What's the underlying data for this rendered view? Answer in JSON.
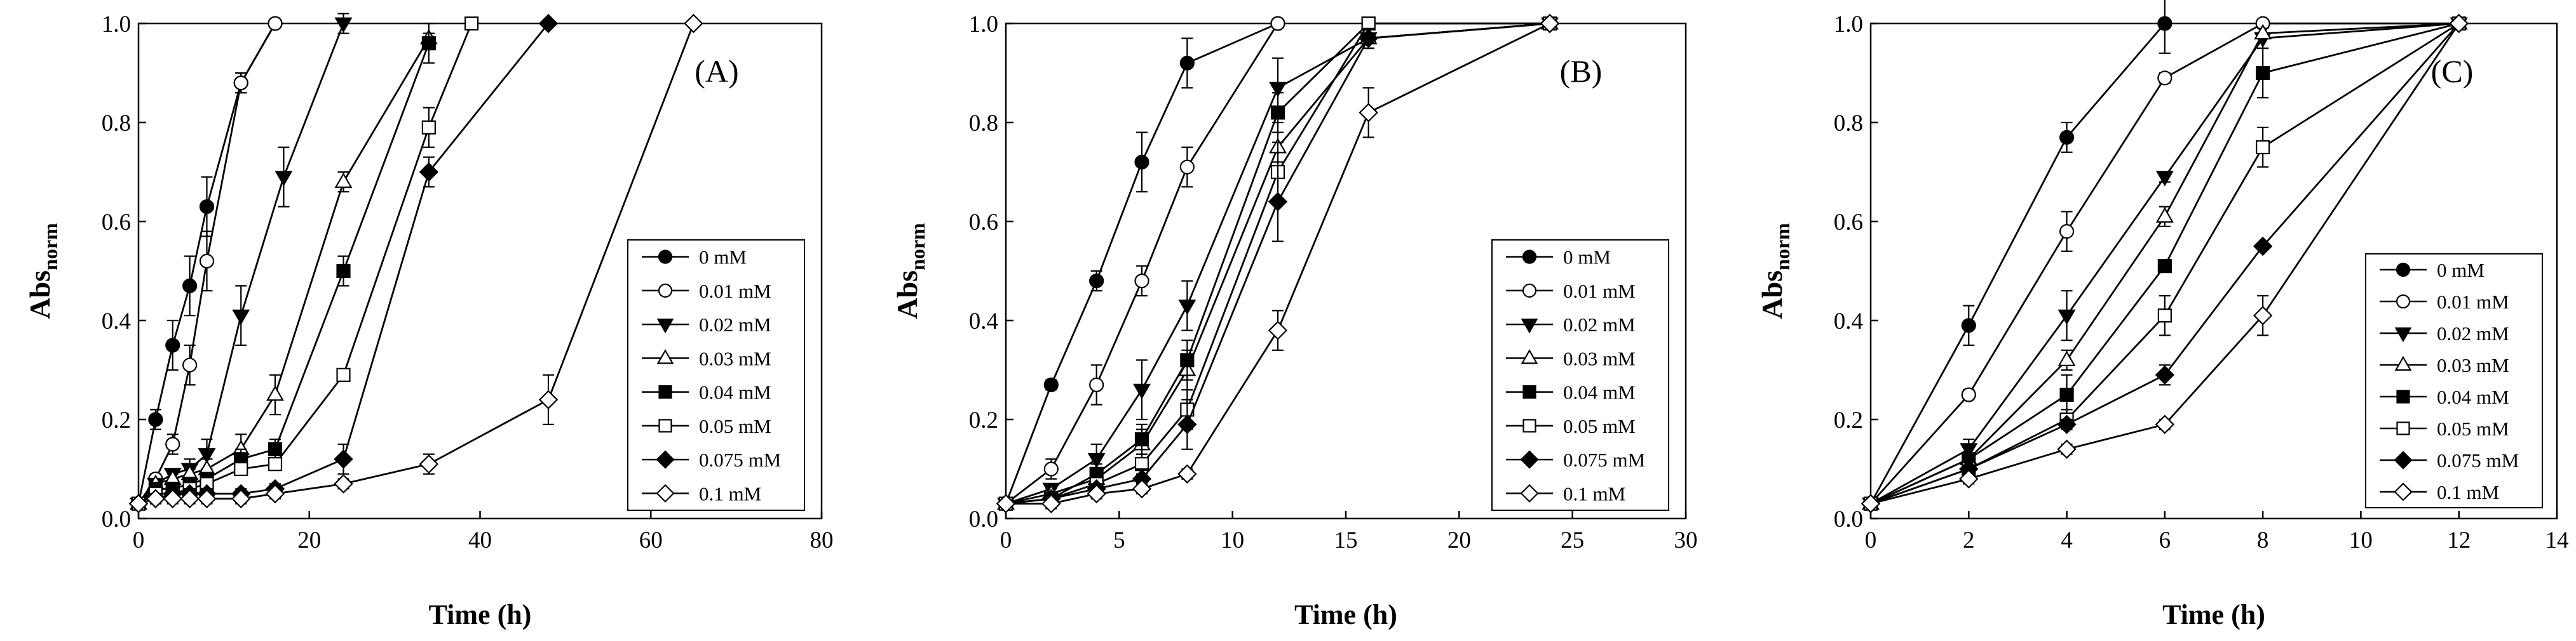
{
  "colors": {
    "ink": "#000000",
    "background": "#ffffff"
  },
  "marker_styles": [
    "filled-circle",
    "open-circle",
    "filled-triangle-down",
    "open-triangle-up",
    "filled-square",
    "open-square",
    "filled-diamond",
    "open-diamond"
  ],
  "chart_data": [
    {
      "type": "line",
      "panel_label": "(A)",
      "xlabel": "Time (h)",
      "ylabel": "Abs",
      "ylabel_sub": "norm",
      "xlim": [
        0,
        80
      ],
      "ylim": [
        0,
        1.0
      ],
      "xticks": [
        0,
        20,
        40,
        60,
        80
      ],
      "yticks": [
        0.0,
        0.2,
        0.4,
        0.6,
        0.8,
        1.0
      ],
      "xtick_labels": [
        "0",
        "20",
        "40",
        "60",
        "80"
      ],
      "ytick_labels": [
        "0.0",
        "0.2",
        "0.4",
        "0.6",
        "0.8",
        "1.0"
      ],
      "legend_position": "center-right",
      "series": [
        {
          "name": "0 mM",
          "x": [
            0,
            2,
            4,
            6,
            8,
            12,
            16
          ],
          "y": [
            0.03,
            0.2,
            0.35,
            0.47,
            0.63,
            0.88,
            1.0
          ],
          "err": [
            0,
            0.02,
            0.05,
            0.06,
            0.06,
            0.02,
            0
          ]
        },
        {
          "name": "0.01 mM",
          "x": [
            0,
            2,
            4,
            6,
            8,
            12,
            16
          ],
          "y": [
            0.03,
            0.08,
            0.15,
            0.31,
            0.52,
            0.88,
            1.0
          ],
          "err": [
            0,
            0.01,
            0.02,
            0.04,
            0.06,
            0.02,
            0
          ]
        },
        {
          "name": "0.02 mM",
          "x": [
            0,
            2,
            4,
            6,
            8,
            12,
            17,
            24
          ],
          "y": [
            0.03,
            0.07,
            0.09,
            0.1,
            0.13,
            0.41,
            0.69,
            1.0
          ],
          "err": [
            0,
            0.01,
            0.01,
            0.02,
            0.03,
            0.06,
            0.06,
            0.02
          ]
        },
        {
          "name": "0.03 mM",
          "x": [
            0,
            2,
            4,
            6,
            8,
            12,
            16,
            24,
            34
          ],
          "y": [
            0.03,
            0.07,
            0.08,
            0.09,
            0.1,
            0.14,
            0.25,
            0.68,
            0.97
          ],
          "err": [
            0,
            0.01,
            0.01,
            0.01,
            0.02,
            0.03,
            0.04,
            0.02,
            0.01
          ]
        },
        {
          "name": "0.04 mM",
          "x": [
            0,
            2,
            4,
            6,
            8,
            12,
            16,
            24,
            34
          ],
          "y": [
            0.03,
            0.06,
            0.06,
            0.07,
            0.08,
            0.12,
            0.14,
            0.5,
            0.96
          ],
          "err": [
            0,
            0.01,
            0.01,
            0.01,
            0.01,
            0.02,
            0.02,
            0.03,
            0.04
          ]
        },
        {
          "name": "0.05 mM",
          "x": [
            0,
            2,
            4,
            6,
            8,
            12,
            16,
            24,
            34,
            39
          ],
          "y": [
            0.03,
            0.05,
            0.05,
            0.06,
            0.07,
            0.1,
            0.11,
            0.29,
            0.79,
            1.0
          ],
          "err": [
            0,
            0.01,
            0.01,
            0.01,
            0.01,
            0.01,
            0.01,
            0.01,
            0.04,
            0
          ]
        },
        {
          "name": "0.075 mM",
          "x": [
            0,
            2,
            4,
            6,
            8,
            12,
            16,
            24,
            34,
            48
          ],
          "y": [
            0.03,
            0.04,
            0.05,
            0.05,
            0.05,
            0.05,
            0.06,
            0.12,
            0.7,
            1.0
          ],
          "err": [
            0,
            0.01,
            0.01,
            0.01,
            0.01,
            0.01,
            0.01,
            0.03,
            0.03,
            0
          ]
        },
        {
          "name": "0.1 mM",
          "x": [
            0,
            2,
            4,
            6,
            8,
            12,
            16,
            24,
            34,
            48,
            65
          ],
          "y": [
            0.03,
            0.04,
            0.04,
            0.04,
            0.04,
            0.04,
            0.05,
            0.07,
            0.11,
            0.24,
            1.0
          ],
          "err": [
            0,
            0.01,
            0.01,
            0.01,
            0.01,
            0.01,
            0.01,
            0.01,
            0.02,
            0.05,
            0
          ]
        }
      ]
    },
    {
      "type": "line",
      "panel_label": "(B)",
      "xlabel": "Time (h)",
      "ylabel": "Abs",
      "ylabel_sub": "norm",
      "xlim": [
        0,
        30
      ],
      "ylim": [
        0,
        1.0
      ],
      "xticks": [
        0,
        5,
        10,
        15,
        20,
        25,
        30
      ],
      "yticks": [
        0.0,
        0.2,
        0.4,
        0.6,
        0.8,
        1.0
      ],
      "xtick_labels": [
        "0",
        "5",
        "10",
        "15",
        "20",
        "25",
        "30"
      ],
      "ytick_labels": [
        "0.0",
        "0.2",
        "0.4",
        "0.6",
        "0.8",
        "1.0"
      ],
      "legend_position": "center-right",
      "series": [
        {
          "name": "0 mM",
          "x": [
            0,
            2,
            4,
            6,
            8,
            12
          ],
          "y": [
            0.03,
            0.27,
            0.48,
            0.72,
            0.92,
            1.0
          ],
          "err": [
            0,
            0.01,
            0.02,
            0.06,
            0.05,
            0
          ]
        },
        {
          "name": "0.01 mM",
          "x": [
            0,
            2,
            4,
            6,
            8,
            12
          ],
          "y": [
            0.03,
            0.1,
            0.27,
            0.48,
            0.71,
            1.0
          ],
          "err": [
            0,
            0.02,
            0.04,
            0.03,
            0.04,
            0
          ]
        },
        {
          "name": "0.02 mM",
          "x": [
            0,
            2,
            4,
            6,
            8,
            12,
            16,
            24
          ],
          "y": [
            0.03,
            0.06,
            0.12,
            0.26,
            0.43,
            0.87,
            0.97,
            1.0
          ],
          "err": [
            0,
            0.01,
            0.03,
            0.06,
            0.05,
            0.06,
            0.02,
            0
          ]
        },
        {
          "name": "0.03 mM",
          "x": [
            0,
            2,
            4,
            6,
            8,
            12,
            16,
            24
          ],
          "y": [
            0.03,
            0.05,
            0.08,
            0.15,
            0.3,
            0.75,
            0.97,
            1.0
          ],
          "err": [
            0,
            0.01,
            0.02,
            0.03,
            0.04,
            0.05,
            0.02,
            0
          ]
        },
        {
          "name": "0.04 mM",
          "x": [
            0,
            2,
            4,
            6,
            8,
            12,
            16,
            24
          ],
          "y": [
            0.03,
            0.04,
            0.09,
            0.16,
            0.32,
            0.82,
            1.0,
            1.0
          ],
          "err": [
            0,
            0.01,
            0.02,
            0.03,
            0.04,
            0.04,
            0,
            0
          ]
        },
        {
          "name": "0.05 mM",
          "x": [
            0,
            2,
            4,
            6,
            8,
            12,
            16,
            24
          ],
          "y": [
            0.03,
            0.04,
            0.07,
            0.11,
            0.22,
            0.7,
            1.0,
            1.0
          ],
          "err": [
            0,
            0.01,
            0.02,
            0.02,
            0.04,
            0.06,
            0,
            0
          ]
        },
        {
          "name": "0.075 mM",
          "x": [
            0,
            2,
            4,
            6,
            8,
            12,
            16,
            24
          ],
          "y": [
            0.03,
            0.04,
            0.06,
            0.08,
            0.19,
            0.64,
            0.97,
            1.0
          ],
          "err": [
            0,
            0.01,
            0.01,
            0.02,
            0.05,
            0.08,
            0.02,
            0
          ]
        },
        {
          "name": "0.1 mM",
          "x": [
            0,
            2,
            4,
            6,
            8,
            12,
            16,
            24
          ],
          "y": [
            0.03,
            0.03,
            0.05,
            0.06,
            0.09,
            0.38,
            0.82,
            1.0
          ],
          "err": [
            0,
            0.01,
            0.01,
            0.01,
            0.01,
            0.04,
            0.05,
            0
          ]
        }
      ]
    },
    {
      "type": "line",
      "panel_label": "(C)",
      "xlabel": "Time (h)",
      "ylabel": "Abs",
      "ylabel_sub": "norm",
      "xlim": [
        0,
        14
      ],
      "ylim": [
        0,
        1.0
      ],
      "xticks": [
        0,
        2,
        4,
        6,
        8,
        10,
        12,
        14
      ],
      "yticks": [
        0.0,
        0.2,
        0.4,
        0.6,
        0.8,
        1.0
      ],
      "xtick_labels": [
        "0",
        "2",
        "4",
        "6",
        "8",
        "10",
        "12",
        "14"
      ],
      "ytick_labels": [
        "0.0",
        "0.2",
        "0.4",
        "0.6",
        "0.8",
        "1.0"
      ],
      "legend_position": "center-right",
      "series": [
        {
          "name": "0 mM",
          "x": [
            0,
            2,
            4,
            6
          ],
          "y": [
            0.03,
            0.39,
            0.77,
            1.0
          ],
          "err": [
            0,
            0.04,
            0.03,
            0.06
          ]
        },
        {
          "name": "0.01 mM",
          "x": [
            0,
            2,
            4,
            6,
            8,
            12
          ],
          "y": [
            0.03,
            0.25,
            0.58,
            0.89,
            1.0,
            1.0
          ],
          "err": [
            0,
            0.01,
            0.04,
            0.01,
            0,
            0
          ]
        },
        {
          "name": "0.02 mM",
          "x": [
            0,
            2,
            4,
            6,
            8,
            12
          ],
          "y": [
            0.03,
            0.14,
            0.41,
            0.69,
            0.97,
            1.0
          ],
          "err": [
            0,
            0.02,
            0.05,
            0.01,
            0.02,
            0
          ]
        },
        {
          "name": "0.03 mM",
          "x": [
            0,
            2,
            4,
            6,
            8,
            12
          ],
          "y": [
            0.03,
            0.12,
            0.32,
            0.61,
            0.98,
            1.0
          ],
          "err": [
            0,
            0.01,
            0.02,
            0.02,
            0.01,
            0
          ]
        },
        {
          "name": "0.04 mM",
          "x": [
            0,
            2,
            4,
            6,
            8,
            12
          ],
          "y": [
            0.03,
            0.12,
            0.25,
            0.51,
            0.9,
            1.0
          ],
          "err": [
            0,
            0.01,
            0.04,
            0.01,
            0.05,
            0
          ]
        },
        {
          "name": "0.05 mM",
          "x": [
            0,
            2,
            4,
            6,
            8,
            12
          ],
          "y": [
            0.03,
            0.1,
            0.2,
            0.41,
            0.75,
            1.0
          ],
          "err": [
            0,
            0.02,
            0.02,
            0.04,
            0.04,
            0
          ]
        },
        {
          "name": "0.075 mM",
          "x": [
            0,
            2,
            4,
            6,
            8,
            12
          ],
          "y": [
            0.03,
            0.1,
            0.19,
            0.29,
            0.55,
            1.0
          ],
          "err": [
            0,
            0.02,
            0.01,
            0.02,
            0,
            0
          ]
        },
        {
          "name": "0.1 mM",
          "x": [
            0,
            2,
            4,
            6,
            8,
            12
          ],
          "y": [
            0.03,
            0.08,
            0.14,
            0.19,
            0.41,
            1.0
          ],
          "err": [
            0,
            0.01,
            0.01,
            0.01,
            0.04,
            0
          ]
        }
      ]
    }
  ]
}
